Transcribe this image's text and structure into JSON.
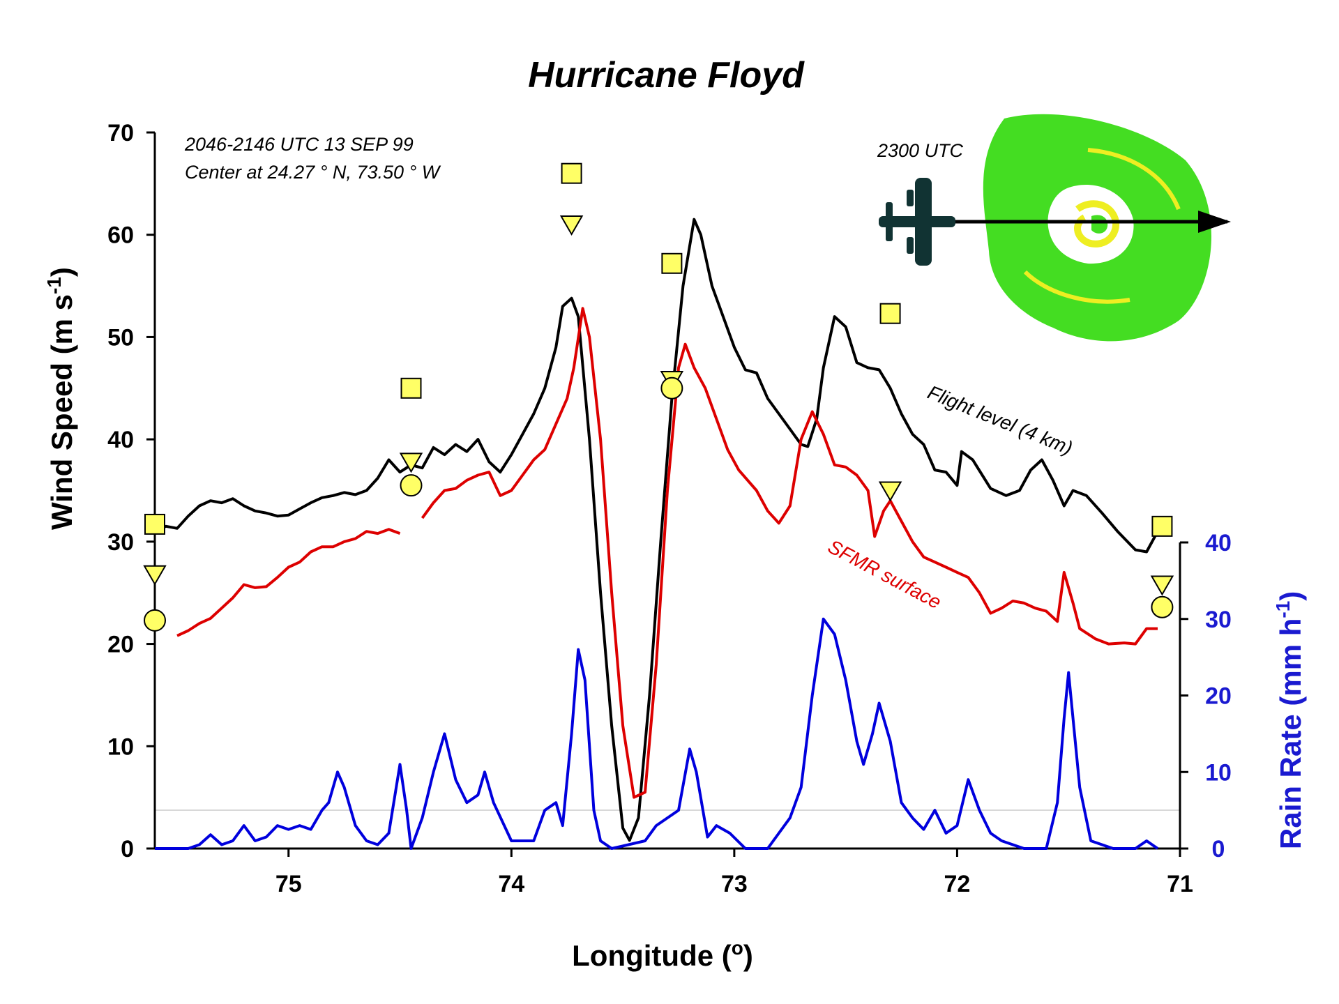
{
  "chart_data": {
    "type": "line",
    "title": "Hurricane Floyd",
    "xlabel": "Longitude (o)",
    "ylabel_left": "Wind Speed (m s-1)",
    "ylabel_right": "Rain Rate (mm h-1)",
    "xlim": [
      75.6,
      71.0
    ],
    "x_reversed": true,
    "ylim_left": [
      0,
      70
    ],
    "ylim_right": [
      0,
      40
    ],
    "x_ticks": [
      "75",
      "74",
      "73",
      "72",
      "71"
    ],
    "y_left_ticks": [
      "0",
      "10",
      "20",
      "30",
      "40",
      "50",
      "60",
      "70"
    ],
    "y_right_ticks": [
      "0",
      "10",
      "20",
      "30",
      "40"
    ],
    "annotations": {
      "time": "2046-2146 UTC 13 SEP 99",
      "center": "Center at 24.27 ° N, 73.50 ° W",
      "inset_time": "2300 UTC"
    },
    "series": [
      {
        "name": "Flight level (4 km)",
        "color": "#000000",
        "axis": "left",
        "points": [
          [
            75.6,
            31
          ],
          [
            75.55,
            31.5
          ],
          [
            75.5,
            31.3
          ],
          [
            75.45,
            32.5
          ],
          [
            75.4,
            33.5
          ],
          [
            75.35,
            34
          ],
          [
            75.3,
            33.8
          ],
          [
            75.25,
            34.2
          ],
          [
            75.2,
            33.5
          ],
          [
            75.15,
            33
          ],
          [
            75.1,
            32.8
          ],
          [
            75.05,
            32.5
          ],
          [
            75.0,
            32.6
          ],
          [
            74.95,
            33.2
          ],
          [
            74.9,
            33.8
          ],
          [
            74.85,
            34.3
          ],
          [
            74.8,
            34.5
          ],
          [
            74.75,
            34.8
          ],
          [
            74.7,
            34.6
          ],
          [
            74.65,
            35
          ],
          [
            74.6,
            36.2
          ],
          [
            74.55,
            38
          ],
          [
            74.5,
            36.8
          ],
          [
            74.45,
            37.5
          ],
          [
            74.4,
            37.2
          ],
          [
            74.35,
            39.2
          ],
          [
            74.3,
            38.5
          ],
          [
            74.25,
            39.5
          ],
          [
            74.2,
            38.8
          ],
          [
            74.15,
            40
          ],
          [
            74.1,
            37.8
          ],
          [
            74.05,
            36.8
          ],
          [
            74.0,
            38.5
          ],
          [
            73.95,
            40.5
          ],
          [
            73.9,
            42.5
          ],
          [
            73.85,
            45
          ],
          [
            73.8,
            49
          ],
          [
            73.77,
            53
          ],
          [
            73.73,
            53.8
          ],
          [
            73.7,
            52
          ],
          [
            73.65,
            40
          ],
          [
            73.6,
            25
          ],
          [
            73.55,
            12
          ],
          [
            73.5,
            2
          ],
          [
            73.47,
            0.8
          ],
          [
            73.43,
            3
          ],
          [
            73.38,
            15
          ],
          [
            73.33,
            30
          ],
          [
            73.28,
            44
          ],
          [
            73.23,
            55
          ],
          [
            73.18,
            61.5
          ],
          [
            73.15,
            60
          ],
          [
            73.1,
            55
          ],
          [
            73.05,
            52
          ],
          [
            73.0,
            49
          ],
          [
            72.95,
            46.8
          ],
          [
            72.9,
            46.5
          ],
          [
            72.85,
            44
          ],
          [
            72.8,
            42.5
          ],
          [
            72.75,
            41
          ],
          [
            72.7,
            39.5
          ],
          [
            72.67,
            39.3
          ],
          [
            72.63,
            42
          ],
          [
            72.6,
            47
          ],
          [
            72.55,
            52
          ],
          [
            72.5,
            51
          ],
          [
            72.45,
            47.5
          ],
          [
            72.4,
            47
          ],
          [
            72.35,
            46.8
          ],
          [
            72.3,
            45
          ],
          [
            72.25,
            42.5
          ],
          [
            72.2,
            40.5
          ],
          [
            72.15,
            39.5
          ],
          [
            72.1,
            37
          ],
          [
            72.05,
            36.8
          ],
          [
            72.0,
            35.5
          ],
          [
            71.98,
            38.8
          ],
          [
            71.93,
            38
          ],
          [
            71.85,
            35.2
          ],
          [
            71.78,
            34.5
          ],
          [
            71.72,
            35
          ],
          [
            71.67,
            37
          ],
          [
            71.62,
            38
          ],
          [
            71.57,
            36
          ],
          [
            71.52,
            33.5
          ],
          [
            71.48,
            35
          ],
          [
            71.42,
            34.5
          ],
          [
            71.35,
            32.8
          ],
          [
            71.28,
            31
          ],
          [
            71.2,
            29.2
          ],
          [
            71.15,
            29
          ],
          [
            71.1,
            31
          ]
        ]
      },
      {
        "name": "SFMR surface",
        "color": "#dd0000",
        "axis": "left",
        "segments": [
          [
            [
              75.5,
              20.8
            ],
            [
              75.45,
              21.3
            ],
            [
              75.4,
              22
            ],
            [
              75.35,
              22.5
            ],
            [
              75.3,
              23.5
            ],
            [
              75.25,
              24.5
            ],
            [
              75.2,
              25.8
            ],
            [
              75.15,
              25.5
            ],
            [
              75.1,
              25.6
            ],
            [
              75.05,
              26.5
            ],
            [
              75.0,
              27.5
            ],
            [
              74.95,
              28
            ],
            [
              74.9,
              29
            ],
            [
              74.85,
              29.5
            ],
            [
              74.8,
              29.5
            ],
            [
              74.75,
              30
            ],
            [
              74.7,
              30.3
            ],
            [
              74.65,
              31
            ],
            [
              74.6,
              30.8
            ],
            [
              74.55,
              31.2
            ],
            [
              74.5,
              30.8
            ]
          ],
          [
            [
              74.4,
              32.3
            ],
            [
              74.35,
              33.8
            ],
            [
              74.3,
              35
            ],
            [
              74.25,
              35.2
            ],
            [
              74.2,
              36
            ],
            [
              74.15,
              36.5
            ],
            [
              74.1,
              36.8
            ],
            [
              74.05,
              34.5
            ],
            [
              74.0,
              35
            ],
            [
              73.95,
              36.5
            ],
            [
              73.9,
              38
            ],
            [
              73.85,
              39
            ],
            [
              73.8,
              41.5
            ],
            [
              73.75,
              44
            ],
            [
              73.72,
              47
            ],
            [
              73.68,
              52.8
            ],
            [
              73.65,
              50
            ],
            [
              73.6,
              40
            ],
            [
              73.55,
              25
            ],
            [
              73.5,
              12
            ],
            [
              73.45,
              5
            ],
            [
              73.4,
              5.5
            ],
            [
              73.35,
              18
            ],
            [
              73.3,
              35
            ],
            [
              73.25,
              47
            ],
            [
              73.22,
              49.3
            ],
            [
              73.18,
              47
            ],
            [
              73.13,
              45
            ],
            [
              73.08,
              42
            ],
            [
              73.03,
              39
            ],
            [
              72.98,
              37
            ],
            [
              72.9,
              35
            ],
            [
              72.85,
              33
            ],
            [
              72.8,
              31.8
            ],
            [
              72.75,
              33.5
            ],
            [
              72.7,
              40
            ],
            [
              72.65,
              42.7
            ],
            [
              72.6,
              40.5
            ],
            [
              72.55,
              37.5
            ],
            [
              72.5,
              37.3
            ],
            [
              72.45,
              36.5
            ],
            [
              72.4,
              35
            ],
            [
              72.37,
              30.5
            ],
            [
              72.33,
              33
            ],
            [
              72.3,
              34
            ],
            [
              72.25,
              32
            ],
            [
              72.2,
              30
            ],
            [
              72.15,
              28.5
            ],
            [
              72.1,
              28
            ],
            [
              72.05,
              27.5
            ],
            [
              72.0,
              27
            ],
            [
              71.95,
              26.5
            ],
            [
              71.9,
              25
            ],
            [
              71.85,
              23
            ],
            [
              71.8,
              23.5
            ],
            [
              71.75,
              24.2
            ],
            [
              71.7,
              24
            ],
            [
              71.65,
              23.5
            ],
            [
              71.6,
              23.2
            ],
            [
              71.55,
              22.2
            ],
            [
              71.52,
              27
            ],
            [
              71.48,
              24
            ],
            [
              71.45,
              21.5
            ],
            [
              71.38,
              20.5
            ],
            [
              71.32,
              20
            ],
            [
              71.25,
              20.1
            ],
            [
              71.2,
              20
            ],
            [
              71.15,
              21.5
            ],
            [
              71.1,
              21.5
            ]
          ]
        ]
      },
      {
        "name": "Rain rate",
        "color": "#0000dd",
        "axis": "right",
        "points": [
          [
            75.6,
            0
          ],
          [
            75.45,
            0
          ],
          [
            75.4,
            0.5
          ],
          [
            75.35,
            1.8
          ],
          [
            75.3,
            0.5
          ],
          [
            75.25,
            1
          ],
          [
            75.2,
            3
          ],
          [
            75.15,
            1
          ],
          [
            75.1,
            1.5
          ],
          [
            75.05,
            3
          ],
          [
            75.0,
            2.5
          ],
          [
            74.95,
            3
          ],
          [
            74.9,
            2.5
          ],
          [
            74.85,
            5
          ],
          [
            74.82,
            6
          ],
          [
            74.78,
            10
          ],
          [
            74.75,
            8
          ],
          [
            74.7,
            3
          ],
          [
            74.65,
            1
          ],
          [
            74.6,
            0.5
          ],
          [
            74.55,
            2
          ],
          [
            74.5,
            11
          ],
          [
            74.47,
            5
          ],
          [
            74.45,
            0
          ],
          [
            74.4,
            4
          ],
          [
            74.35,
            10
          ],
          [
            74.3,
            15
          ],
          [
            74.25,
            9
          ],
          [
            74.2,
            6
          ],
          [
            74.15,
            7
          ],
          [
            74.12,
            10
          ],
          [
            74.08,
            6
          ],
          [
            74.0,
            1
          ],
          [
            73.9,
            1
          ],
          [
            73.85,
            5
          ],
          [
            73.8,
            6
          ],
          [
            73.77,
            3
          ],
          [
            73.73,
            15
          ],
          [
            73.7,
            26
          ],
          [
            73.67,
            22
          ],
          [
            73.63,
            5
          ],
          [
            73.6,
            1
          ],
          [
            73.55,
            0
          ],
          [
            73.4,
            1
          ],
          [
            73.35,
            3
          ],
          [
            73.3,
            4
          ],
          [
            73.25,
            5
          ],
          [
            73.2,
            13
          ],
          [
            73.17,
            10
          ],
          [
            73.12,
            1.5
          ],
          [
            73.08,
            3
          ],
          [
            73.02,
            2
          ],
          [
            72.95,
            0
          ],
          [
            72.85,
            0
          ],
          [
            72.8,
            2
          ],
          [
            72.75,
            4
          ],
          [
            72.7,
            8
          ],
          [
            72.65,
            20
          ],
          [
            72.6,
            30
          ],
          [
            72.55,
            28
          ],
          [
            72.5,
            22
          ],
          [
            72.45,
            14
          ],
          [
            72.42,
            11
          ],
          [
            72.38,
            15
          ],
          [
            72.35,
            19
          ],
          [
            72.3,
            14
          ],
          [
            72.25,
            6
          ],
          [
            72.2,
            4
          ],
          [
            72.15,
            2.5
          ],
          [
            72.1,
            5
          ],
          [
            72.05,
            2
          ],
          [
            72.0,
            3
          ],
          [
            71.95,
            9
          ],
          [
            71.9,
            5
          ],
          [
            71.85,
            2
          ],
          [
            71.8,
            1
          ],
          [
            71.75,
            0.5
          ],
          [
            71.7,
            0
          ],
          [
            71.6,
            0
          ],
          [
            71.55,
            6
          ],
          [
            71.52,
            17
          ],
          [
            71.5,
            23
          ],
          [
            71.45,
            8
          ],
          [
            71.4,
            1
          ],
          [
            71.35,
            0.5
          ],
          [
            71.3,
            0
          ],
          [
            71.2,
            0
          ],
          [
            71.15,
            1
          ],
          [
            71.1,
            0
          ]
        ]
      }
    ],
    "markers": [
      {
        "shape": "square",
        "color": "#ffff66",
        "points": [
          [
            75.6,
            31.7
          ],
          [
            74.45,
            45
          ],
          [
            73.73,
            66
          ],
          [
            73.28,
            57.2
          ],
          [
            72.3,
            52.3
          ],
          [
            71.08,
            31.5
          ]
        ]
      },
      {
        "shape": "triangle-down",
        "color": "#ffff66",
        "points": [
          [
            75.6,
            26.8
          ],
          [
            74.45,
            37.8
          ],
          [
            73.73,
            61
          ],
          [
            73.28,
            45.8
          ],
          [
            72.3,
            35
          ],
          [
            71.08,
            25.8
          ]
        ]
      },
      {
        "shape": "circle",
        "color": "#ffff66",
        "points": [
          [
            75.6,
            22.3
          ],
          [
            74.45,
            35.5
          ],
          [
            73.28,
            45
          ],
          [
            71.08,
            23.6
          ]
        ]
      }
    ],
    "series_labels": {
      "flight_level": "Flight level (4 km)",
      "sfmr": "SFMR surface"
    }
  }
}
